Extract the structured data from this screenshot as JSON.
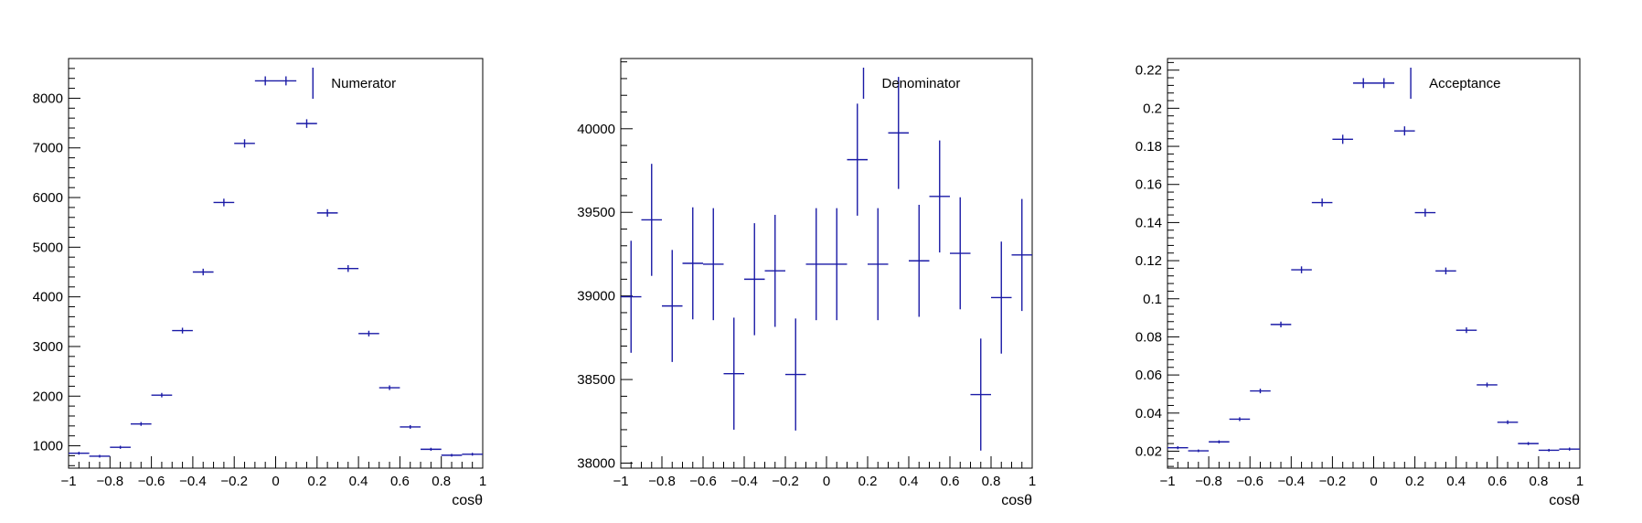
{
  "chart_data": [
    {
      "type": "scatter",
      "style": "histogram-errorbars",
      "xlabel": "cosθ",
      "legend": "Numerator",
      "legend_position": "top-right",
      "color": "#1a1aa6",
      "xlim": [
        -1,
        1
      ],
      "ylim": [
        550,
        8800
      ],
      "x_ticks": [
        -1,
        -0.8,
        -0.6,
        -0.4,
        -0.2,
        0,
        0.2,
        0.4,
        0.6,
        0.8,
        1
      ],
      "x_tick_labels": [
        "−1",
        "−0.8",
        "−0.6",
        "−0.4",
        "−0.2",
        "0",
        "0.2",
        "0.4",
        "0.6",
        "0.8",
        "1"
      ],
      "y_ticks": [
        1000,
        2000,
        3000,
        4000,
        5000,
        6000,
        7000,
        8000
      ],
      "y_tick_labels": [
        "1000",
        "2000",
        "3000",
        "4000",
        "5000",
        "6000",
        "7000",
        "8000"
      ],
      "x": [
        -0.95,
        -0.85,
        -0.75,
        -0.65,
        -0.55,
        -0.45,
        -0.35,
        -0.25,
        -0.15,
        -0.05,
        0.05,
        0.15,
        0.25,
        0.35,
        0.45,
        0.55,
        0.65,
        0.75,
        0.85,
        0.95
      ],
      "x_err": 0.05,
      "values": [
        850,
        790,
        970,
        1440,
        2020,
        3320,
        4500,
        5900,
        7090,
        8350,
        8350,
        7490,
        5690,
        4570,
        3260,
        2170,
        1380,
        930,
        810,
        830
      ],
      "errors": [
        29,
        28,
        31,
        38,
        45,
        58,
        67,
        77,
        84,
        91,
        91,
        87,
        75,
        68,
        57,
        47,
        37,
        30,
        28,
        29
      ]
    },
    {
      "type": "scatter",
      "style": "histogram-errorbars",
      "xlabel": "cosθ",
      "legend": "Denominator",
      "legend_position": "top-right",
      "color": "#1a1aa6",
      "xlim": [
        -1,
        1
      ],
      "ylim": [
        37970,
        40420
      ],
      "x_ticks": [
        -1,
        -0.8,
        -0.6,
        -0.4,
        -0.2,
        0,
        0.2,
        0.4,
        0.6,
        0.8,
        1
      ],
      "x_tick_labels": [
        "−1",
        "−0.8",
        "−0.6",
        "−0.4",
        "−0.2",
        "0",
        "0.2",
        "0.4",
        "0.6",
        "0.8",
        "1"
      ],
      "y_ticks": [
        38000,
        38500,
        39000,
        39500,
        40000
      ],
      "y_tick_labels": [
        "38000",
        "38500",
        "39000",
        "39500",
        "40000"
      ],
      "x": [
        -0.95,
        -0.85,
        -0.75,
        -0.65,
        -0.55,
        -0.45,
        -0.35,
        -0.25,
        -0.15,
        -0.05,
        0.05,
        0.15,
        0.25,
        0.35,
        0.45,
        0.55,
        0.65,
        0.75,
        0.85,
        0.95
      ],
      "x_err": 0.05,
      "values": [
        38995,
        39455,
        38940,
        39195,
        39190,
        38535,
        39100,
        39150,
        38530,
        39190,
        39190,
        39815,
        39190,
        39975,
        39210,
        39595,
        39255,
        38410,
        38990,
        39245
      ],
      "errors": [
        335,
        335,
        335,
        335,
        335,
        335,
        335,
        335,
        335,
        335,
        335,
        335,
        335,
        335,
        335,
        335,
        335,
        335,
        335,
        335
      ]
    },
    {
      "type": "scatter",
      "style": "histogram-errorbars",
      "xlabel": "cosθ",
      "legend": "Acceptance",
      "legend_position": "top-right",
      "color": "#1a1aa6",
      "xlim": [
        -1,
        1
      ],
      "ylim": [
        0.0111,
        0.2261
      ],
      "x_ticks": [
        -1,
        -0.8,
        -0.6,
        -0.4,
        -0.2,
        0,
        0.2,
        0.4,
        0.6,
        0.8,
        1
      ],
      "x_tick_labels": [
        "−1",
        "−0.8",
        "−0.6",
        "−0.4",
        "−0.2",
        "0",
        "0.2",
        "0.4",
        "0.6",
        "0.8",
        "1"
      ],
      "y_ticks": [
        0.02,
        0.04,
        0.06,
        0.08,
        0.1,
        0.12,
        0.14,
        0.16,
        0.18,
        0.2,
        0.22
      ],
      "y_tick_labels": [
        "0.02",
        "0.04",
        "0.06",
        "0.08",
        "0.1",
        "0.12",
        "0.14",
        "0.16",
        "0.18",
        "0.2",
        "0.22"
      ],
      "x": [
        -0.95,
        -0.85,
        -0.75,
        -0.65,
        -0.55,
        -0.45,
        -0.35,
        -0.25,
        -0.15,
        -0.05,
        0.05,
        0.15,
        0.25,
        0.35,
        0.45,
        0.55,
        0.65,
        0.75,
        0.85,
        0.95
      ],
      "x_err": 0.05,
      "values": [
        0.0218,
        0.0202,
        0.0249,
        0.0368,
        0.0516,
        0.0865,
        0.1152,
        0.1505,
        0.1837,
        0.2132,
        0.2132,
        0.1881,
        0.1452,
        0.1146,
        0.0835,
        0.0548,
        0.0352,
        0.024,
        0.0205,
        0.0211
      ],
      "errors": [
        0.0008,
        0.0007,
        0.0008,
        0.001,
        0.0012,
        0.0015,
        0.0018,
        0.0021,
        0.0024,
        0.0026,
        0.0026,
        0.0024,
        0.0021,
        0.0018,
        0.0015,
        0.0012,
        0.001,
        0.0008,
        0.0007,
        0.0008
      ]
    }
  ]
}
